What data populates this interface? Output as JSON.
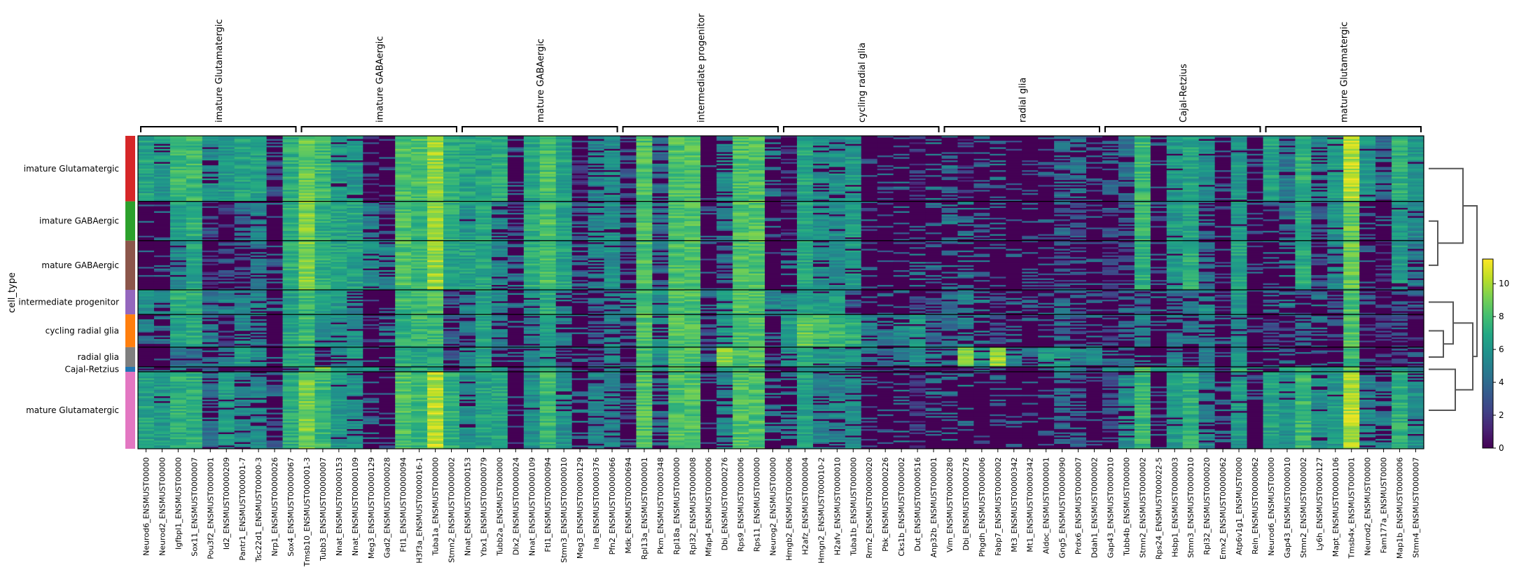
{
  "chart_data": {
    "type": "heatmap",
    "title": "",
    "ylabel": "cell_type",
    "xlabel": "",
    "colormap": "viridis",
    "colorbar": {
      "min": 0,
      "max": 11.5,
      "ticks": [
        0,
        2,
        4,
        6,
        8,
        10
      ]
    },
    "cell_types": [
      {
        "name": "imature Glutamatergic",
        "color": "#d62728",
        "rows": 40
      },
      {
        "name": "imature GABAergic",
        "color": "#2ca02c",
        "rows": 24
      },
      {
        "name": "mature GABAergic",
        "color": "#8c564b",
        "rows": 30
      },
      {
        "name": "intermediate progenitor",
        "color": "#9467bd",
        "rows": 15
      },
      {
        "name": "cycling radial glia",
        "color": "#ff7f0e",
        "rows": 20
      },
      {
        "name": "radial glia",
        "color": "#7f7f7f",
        "rows": 12
      },
      {
        "name": "Cajal-Retzius",
        "color": "#1f77b4",
        "rows": 3
      },
      {
        "name": "mature Glutamatergic",
        "color": "#e377c2",
        "rows": 47
      }
    ],
    "gene_groups": [
      {
        "label": "imature Glutamatergic",
        "genes": [
          "Neurod6_ENSMUST00000",
          "Neurod2_ENSMUST00000",
          "Igfbpl1_ENSMUST00000",
          "Sox11_ENSMUST0000007",
          "Pou3f2_ENSMUST0000001",
          "Id2_ENSMUST00000209",
          "Pantr1_ENSMUST000001-7",
          "Tsc22d1_ENSMUST00000-3",
          "Nrp1_ENSMUST00000026",
          "Sox4_ENSMUST00000067"
        ]
      },
      {
        "label": "imature GABAergic",
        "genes": [
          "Tmsb10_ENSMUST000001-3",
          "Tubb3_ENSMUST00000007",
          "Nnat_ENSMUST00000153",
          "Nnat_ENSMUST00000109",
          "Meg3_ENSMUST00000129",
          "Gad2_ENSMUST00000028",
          "Ftl1_ENSMUST00000094",
          "H3f3a_ENSMUST0000016-1",
          "Tuba1a_ENSMUST000000",
          "Stmn2_ENSMUST00000002"
        ]
      },
      {
        "label": "mature GABAergic",
        "genes": [
          "Nnat_ENSMUST00000153",
          "Ybx1_ENSMUST00000079",
          "Tubb2a_ENSMUST000000",
          "Dlx2_ENSMUST00000024",
          "Nnat_ENSMUST00000109",
          "Ftl1_ENSMUST00000094",
          "Stmn3_ENSMUST00000010",
          "Meg3_ENSMUST00000129",
          "Ina_ENSMUST00000376",
          "Pfn2_ENSMUST00000066"
        ]
      },
      {
        "label": "intermediate progenitor",
        "genes": [
          "Mdk_ENSMUST00000694",
          "Rpl13a_ENSMUST0000001",
          "Pkm_ENSMUST00000348",
          "Rpl18a_ENSMUST000000",
          "Rpl32_ENSMUST0000008",
          "Mfap4_ENSMUST0000006",
          "Dbi_ENSMUST00000276",
          "Rps9_ENSMUST0000006",
          "Rps11_ENSMUST000000",
          "Neurog2_ENSMUST00000"
        ]
      },
      {
        "label": "cycling radial glia",
        "genes": [
          "Hmgb2_ENSMUST0000006",
          "H2afz_ENSMUST0000004",
          "Hmgn2_ENSMUST000010-2",
          "H2afv_ENSMUST0000010",
          "Tuba1b_ENSMUST000000",
          "Rrm2_ENSMUST00000020",
          "Pbk_ENSMUST00000226",
          "Cks1b_ENSMUST0000002",
          "Dut_ENSMUST00000516",
          "Anp32b_ENSMUST000001"
        ]
      },
      {
        "label": "radial glia",
        "genes": [
          "Vim_ENSMUST00000280",
          "Dbi_ENSMUST00000276",
          "Phgdh_ENSMUST0000006",
          "Fabp7_ENSMUST0000002",
          "Mt3_ENSMUST00000342",
          "Mt1_ENSMUST00000342",
          "Aldoc_ENSMUST0000001",
          "Gng5_ENSMUST00000090",
          "Prdx6_ENSMUST0000007",
          "Ddah1_ENSMUST0000002"
        ]
      },
      {
        "label": "Cajal-Retzius",
        "genes": [
          "Gap43_ENSMUST0000010",
          "Tubb4b_ENSMUST000000",
          "Stmn2_ENSMUST0000002",
          "Rps24_ENSMUST000022-5",
          "Hsbp1_ENSMUST0000003",
          "Stmn3_ENSMUST0000010",
          "Rpl32_ENSMUST0000020",
          "Emx2_ENSMUST00000062",
          "Atp6v1g1_ENSMUST0000",
          "Reln_ENSMUST00000062"
        ]
      },
      {
        "label": "mature Glutamatergic",
        "genes": [
          "Neurod6_ENSMUST00000",
          "Gap43_ENSMUST0000010",
          "Stmn2_ENSMUST0000002",
          "Ly6h_ENSMUST0000127",
          "Mapt_ENSMUST00000106",
          "Tmsb4x_ENSMUST000001",
          "Neurod2_ENSMUST00000",
          "Fam177a_ENSMUST0000",
          "Map1b_ENSMUST0000006",
          "Stmn4_ENSMUST0000007"
        ]
      }
    ],
    "mean_expression": [
      [
        6.5,
        6.0,
        7.5,
        7.5,
        5.5,
        6.0,
        6.5,
        6.5,
        3.0,
        7.0,
        8.5,
        7.5,
        6.0,
        6.0,
        2.0,
        0.0,
        8.0,
        8.0,
        9.5,
        7.0,
        6.5,
        6.5,
        7.0,
        0.5,
        6.5,
        8.0,
        6.5,
        2.0,
        5.0,
        5.5,
        3.0,
        8.0,
        4.0,
        8.0,
        8.0,
        0.3,
        5.0,
        8.0,
        8.0,
        1.5,
        2.0,
        6.5,
        5.5,
        5.5,
        6.0,
        0.3,
        0.3,
        1.0,
        2.0,
        1.5,
        1.0,
        2.0,
        0.5,
        1.0,
        0.5,
        0.3,
        0.3,
        4.0,
        4.0,
        0.5,
        4.0,
        4.0,
        7.5,
        0.5,
        6.0,
        6.5,
        5.5,
        0.2,
        6.0,
        0.0,
        6.5,
        4.5,
        7.0,
        5.0,
        6.0,
        10.0,
        6.0,
        4.0,
        7.0,
        6.0
      ],
      [
        0.3,
        0.3,
        6.5,
        7.0,
        2.5,
        2.0,
        4.0,
        5.0,
        0.3,
        7.0,
        9.0,
        7.0,
        6.5,
        6.5,
        5.0,
        3.0,
        8.0,
        7.5,
        9.5,
        7.0,
        6.0,
        6.5,
        5.0,
        3.0,
        7.0,
        8.0,
        6.5,
        3.5,
        5.0,
        5.5,
        3.0,
        8.0,
        4.0,
        8.0,
        8.0,
        0.3,
        5.0,
        8.0,
        8.0,
        0.5,
        2.0,
        6.5,
        5.5,
        5.5,
        6.0,
        0.3,
        0.3,
        0.8,
        1.5,
        1.0,
        1.5,
        1.5,
        0.5,
        0.8,
        0.3,
        0.3,
        0.5,
        3.5,
        3.0,
        0.5,
        3.0,
        3.0,
        7.5,
        0.3,
        6.0,
        6.5,
        4.0,
        0.2,
        6.0,
        0.3,
        0.5,
        4.0,
        7.0,
        3.0,
        5.5,
        8.5,
        0.5,
        0.5,
        6.0,
        5.0
      ],
      [
        0.3,
        0.3,
        5.0,
        6.5,
        2.0,
        3.0,
        3.0,
        4.5,
        0.3,
        7.0,
        9.0,
        7.0,
        6.5,
        6.5,
        5.5,
        5.0,
        8.0,
        7.5,
        9.5,
        6.5,
        6.5,
        6.5,
        5.0,
        4.0,
        7.0,
        8.0,
        6.5,
        3.5,
        5.0,
        5.5,
        3.0,
        8.0,
        4.0,
        8.0,
        8.0,
        0.3,
        4.0,
        8.0,
        8.0,
        0.3,
        1.5,
        6.5,
        5.5,
        5.5,
        6.0,
        0.3,
        0.3,
        0.5,
        1.5,
        1.0,
        1.0,
        1.5,
        0.5,
        0.5,
        0.3,
        0.3,
        0.3,
        3.0,
        3.0,
        0.5,
        2.5,
        2.5,
        7.0,
        0.5,
        6.0,
        7.0,
        4.0,
        0.3,
        6.5,
        0.3,
        0.5,
        1.5,
        7.0,
        3.0,
        5.0,
        8.5,
        0.3,
        2.0,
        6.0,
        4.5
      ],
      [
        5.5,
        5.0,
        7.0,
        7.0,
        4.5,
        5.0,
        5.0,
        5.0,
        1.0,
        6.5,
        7.5,
        6.5,
        6.0,
        5.0,
        0.5,
        0.3,
        7.5,
        7.5,
        8.0,
        3.0,
        5.0,
        6.5,
        5.0,
        1.0,
        5.5,
        7.0,
        5.0,
        1.0,
        4.0,
        5.0,
        5.0,
        8.0,
        5.5,
        8.0,
        8.0,
        3.5,
        6.0,
        8.0,
        8.0,
        5.0,
        5.0,
        6.5,
        6.0,
        6.0,
        3.0,
        0.5,
        1.0,
        1.5,
        2.5,
        3.0,
        4.0,
        5.0,
        1.5,
        3.0,
        1.0,
        1.0,
        1.0,
        4.0,
        3.5,
        1.0,
        2.5,
        4.0,
        3.5,
        1.5,
        4.5,
        4.0,
        5.5,
        2.0,
        6.0,
        0.3,
        4.0,
        1.5,
        3.0,
        1.5,
        3.0,
        8.0,
        3.5,
        2.0,
        3.5,
        3.5
      ],
      [
        1.5,
        1.5,
        6.5,
        7.0,
        4.5,
        2.0,
        5.0,
        4.5,
        0.3,
        6.5,
        7.5,
        5.5,
        5.5,
        5.5,
        2.0,
        1.5,
        7.0,
        7.5,
        7.5,
        3.5,
        4.0,
        6.5,
        4.5,
        1.5,
        5.0,
        6.5,
        5.0,
        1.5,
        3.5,
        5.0,
        3.5,
        8.0,
        5.5,
        8.0,
        8.0,
        3.0,
        6.0,
        8.0,
        8.0,
        1.0,
        6.0,
        8.5,
        7.5,
        7.5,
        7.0,
        5.0,
        4.5,
        5.0,
        6.0,
        4.0,
        4.0,
        5.0,
        1.5,
        2.5,
        0.5,
        0.5,
        0.5,
        4.0,
        3.0,
        1.0,
        2.5,
        4.0,
        5.0,
        1.0,
        4.5,
        4.5,
        4.5,
        1.0,
        5.0,
        0.3,
        2.5,
        2.5,
        4.0,
        1.5,
        2.5,
        8.0,
        2.0,
        2.0,
        3.0,
        2.0
      ],
      [
        0.5,
        0.5,
        4.0,
        4.0,
        4.0,
        4.5,
        6.0,
        5.5,
        0.3,
        6.5,
        7.0,
        3.0,
        5.0,
        6.0,
        0.5,
        0.5,
        7.0,
        6.5,
        6.5,
        3.0,
        5.0,
        6.5,
        3.5,
        1.0,
        5.0,
        6.0,
        2.5,
        1.0,
        2.5,
        5.0,
        2.0,
        8.0,
        5.5,
        8.0,
        8.0,
        3.5,
        9.0,
        8.0,
        8.0,
        3.0,
        5.5,
        7.0,
        6.0,
        6.0,
        5.5,
        4.5,
        4.0,
        4.5,
        5.5,
        4.5,
        4.5,
        9.0,
        6.0,
        9.5,
        5.0,
        4.0,
        6.0,
        6.0,
        5.0,
        5.5,
        4.0,
        4.0,
        1.5,
        0.5,
        5.0,
        2.0,
        4.5,
        3.0,
        5.5,
        0.3,
        1.5,
        1.0,
        1.0,
        0.5,
        1.0,
        7.5,
        0.5,
        2.0,
        3.0,
        0.5
      ],
      [
        1.0,
        1.0,
        5.0,
        3.0,
        3.0,
        1.0,
        2.0,
        1.0,
        0.5,
        5.0,
        6.0,
        9.0,
        6.0,
        6.0,
        6.0,
        2.5,
        6.0,
        7.0,
        7.0,
        0.5,
        6.0,
        7.0,
        6.0,
        2.0,
        6.0,
        7.0,
        5.0,
        3.0,
        4.0,
        5.0,
        4.0,
        8.0,
        5.0,
        8.0,
        8.0,
        0.5,
        6.0,
        8.0,
        7.0,
        1.0,
        1.0,
        6.0,
        5.0,
        5.0,
        5.0,
        0.5,
        0.5,
        1.0,
        2.0,
        1.0,
        2.0,
        2.0,
        1.0,
        1.0,
        0.5,
        0.5,
        0.5,
        5.0,
        5.0,
        0.5,
        6.0,
        5.0,
        8.0,
        6.0,
        6.0,
        7.0,
        6.0,
        3.0,
        7.0,
        6.0,
        1.0,
        6.0,
        7.0,
        6.0,
        6.0,
        8.0,
        3.0,
        5.0,
        6.0,
        5.0
      ],
      [
        6.5,
        6.0,
        7.0,
        7.0,
        4.0,
        6.0,
        5.0,
        5.0,
        3.5,
        7.0,
        9.0,
        7.5,
        6.0,
        5.5,
        1.0,
        0.0,
        8.0,
        7.5,
        10.0,
        7.0,
        5.5,
        6.5,
        6.5,
        0.3,
        5.5,
        7.5,
        5.5,
        1.5,
        5.0,
        5.0,
        2.5,
        8.0,
        4.0,
        8.0,
        8.0,
        0.3,
        5.0,
        8.0,
        8.0,
        1.5,
        1.5,
        6.5,
        5.0,
        5.0,
        5.5,
        0.3,
        0.3,
        1.0,
        2.0,
        1.0,
        1.0,
        1.5,
        0.3,
        0.5,
        0.3,
        0.3,
        0.3,
        4.0,
        3.5,
        0.3,
        3.0,
        5.5,
        7.5,
        0.5,
        6.0,
        7.0,
        5.0,
        1.0,
        6.0,
        0.0,
        6.5,
        5.5,
        7.5,
        5.5,
        6.0,
        10.0,
        5.0,
        4.5,
        7.0,
        5.5
      ]
    ],
    "dendrogram": {
      "side": "right",
      "order": [
        "imature Glutamatergic",
        "imature GABAergic",
        "mature GABAergic",
        "intermediate progenitor",
        "cycling radial glia",
        "radial glia",
        "Cajal-Retzius",
        "mature Glutamatergic"
      ],
      "merges": [
        {
          "a": "imature GABAergic",
          "b": "mature GABAergic"
        },
        {
          "a": "imature Glutamatergic",
          "b": "(imature GABAergic, mature GABAergic)"
        },
        {
          "a": "cycling radial glia",
          "b": "radial glia"
        },
        {
          "a": "intermediate progenitor",
          "b": "(cycling radial glia, radial glia)"
        },
        {
          "a": "Cajal-Retzius",
          "b": "mature Glutamatergic"
        },
        {
          "a": "(intermediate progenitor, ...)",
          "b": "(Cajal-Retzius, mature Glutamatergic)"
        },
        {
          "a": "(imature Glutamatergic, ...)",
          "b": "(intermediate progenitor, ...)"
        }
      ]
    }
  }
}
